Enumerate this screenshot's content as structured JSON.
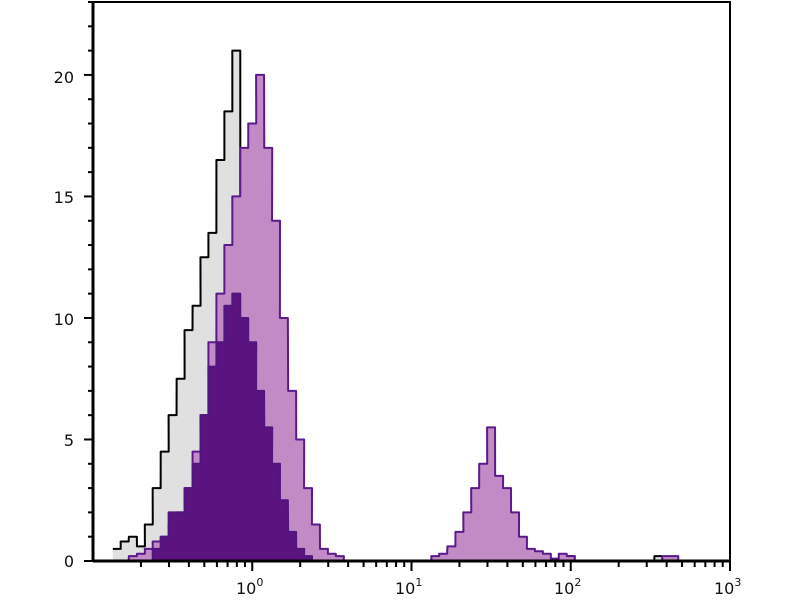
{
  "chart_data": {
    "type": "area",
    "title": "",
    "xlabel": "",
    "ylabel": "",
    "x_scale": "log",
    "xlim": [
      0.1,
      1000
    ],
    "ylim": [
      0,
      23
    ],
    "grid": false,
    "legend": "none",
    "y_ticks": [
      {
        "value": 0,
        "label": "0"
      },
      {
        "value": 5,
        "label": "5"
      },
      {
        "value": 10,
        "label": "10"
      },
      {
        "value": 15,
        "label": "15"
      },
      {
        "value": 20,
        "label": "20"
      }
    ],
    "x_ticks": [
      {
        "value": 1,
        "base": "10",
        "exp": "0"
      },
      {
        "value": 10,
        "base": "10",
        "exp": "1"
      },
      {
        "value": 100,
        "base": "10",
        "exp": "2"
      },
      {
        "value": 1000,
        "base": "10",
        "exp": "3"
      }
    ],
    "x": [
      0.141,
      0.158,
      0.178,
      0.2,
      0.224,
      0.251,
      0.282,
      0.316,
      0.355,
      0.398,
      0.447,
      0.501,
      0.562,
      0.631,
      0.708,
      0.794,
      0.891,
      1.0,
      1.12,
      1.26,
      1.41,
      1.58,
      1.78,
      2.0,
      2.24,
      2.51,
      2.82,
      3.16,
      3.55,
      3.98,
      4.47,
      5.01,
      5.62,
      6.31,
      7.08,
      7.94,
      8.91,
      10,
      11.2,
      12.6,
      14.1,
      15.8,
      17.8,
      20.0,
      22.4,
      25.1,
      28.2,
      31.6,
      35.5,
      39.8,
      44.7,
      50.1,
      56.2,
      63.1,
      70.8,
      79.4,
      89.1,
      100,
      112,
      126,
      141,
      158,
      178,
      200,
      224,
      251,
      282,
      316,
      355,
      398,
      447,
      501
    ],
    "series": [
      {
        "role": "control",
        "fill": "#e0e0e0",
        "stroke": "#000000",
        "values": [
          0.5,
          0.8,
          1,
          0.6,
          1.5,
          3,
          4.5,
          6,
          7.5,
          9.5,
          10.5,
          12.5,
          13.5,
          16.5,
          18.5,
          21,
          14,
          7,
          3,
          1,
          0.3,
          0.2,
          0,
          0,
          0,
          0,
          0,
          0,
          0,
          0,
          0,
          0,
          0,
          0,
          0,
          0,
          0,
          0,
          0,
          0,
          0,
          0,
          0,
          0,
          0,
          0,
          0,
          0,
          0,
          0,
          0,
          0,
          0,
          0,
          0,
          0,
          0,
          0.2,
          0,
          0,
          0,
          0,
          0,
          0,
          0,
          0,
          0,
          0,
          0.2,
          0,
          0,
          0
        ]
      },
      {
        "role": "stained-light",
        "fill": "#c28bc6",
        "stroke": "#5b1a8c",
        "values": [
          0,
          0,
          0.2,
          0.3,
          0.5,
          0.8,
          1,
          1.5,
          2,
          3,
          4.5,
          6,
          9,
          11,
          13,
          15,
          17,
          18,
          20,
          17,
          14,
          10,
          7,
          5,
          3,
          1.5,
          0.5,
          0.3,
          0.2,
          0,
          0,
          0,
          0,
          0,
          0,
          0,
          0,
          0,
          0,
          0,
          0.2,
          0.3,
          0.6,
          1.2,
          2,
          3,
          4,
          5.5,
          3.5,
          3,
          2,
          1,
          0.5,
          0.4,
          0.3,
          0.1,
          0.3,
          0.2,
          0,
          0,
          0,
          0,
          0,
          0,
          0,
          0,
          0,
          0,
          0,
          0.2,
          0.2,
          0
        ]
      },
      {
        "role": "stained-dark",
        "fill": "#5a137f",
        "stroke": "#4f1680",
        "values": [
          0,
          0,
          0,
          0,
          0,
          0.5,
          1,
          2,
          2,
          3,
          4,
          6,
          8,
          9,
          10.5,
          11,
          10,
          9,
          7,
          5.5,
          4,
          2.5,
          1.2,
          0.5,
          0.2,
          0,
          0,
          0,
          0,
          0,
          0,
          0,
          0,
          0,
          0,
          0,
          0,
          0,
          0,
          0,
          0,
          0,
          0,
          0,
          0,
          0,
          0,
          0,
          0,
          0,
          0,
          0,
          0,
          0,
          0,
          0,
          0,
          0,
          0,
          0,
          0,
          0,
          0,
          0,
          0,
          0,
          0,
          0,
          0,
          0,
          0,
          0
        ]
      }
    ]
  }
}
